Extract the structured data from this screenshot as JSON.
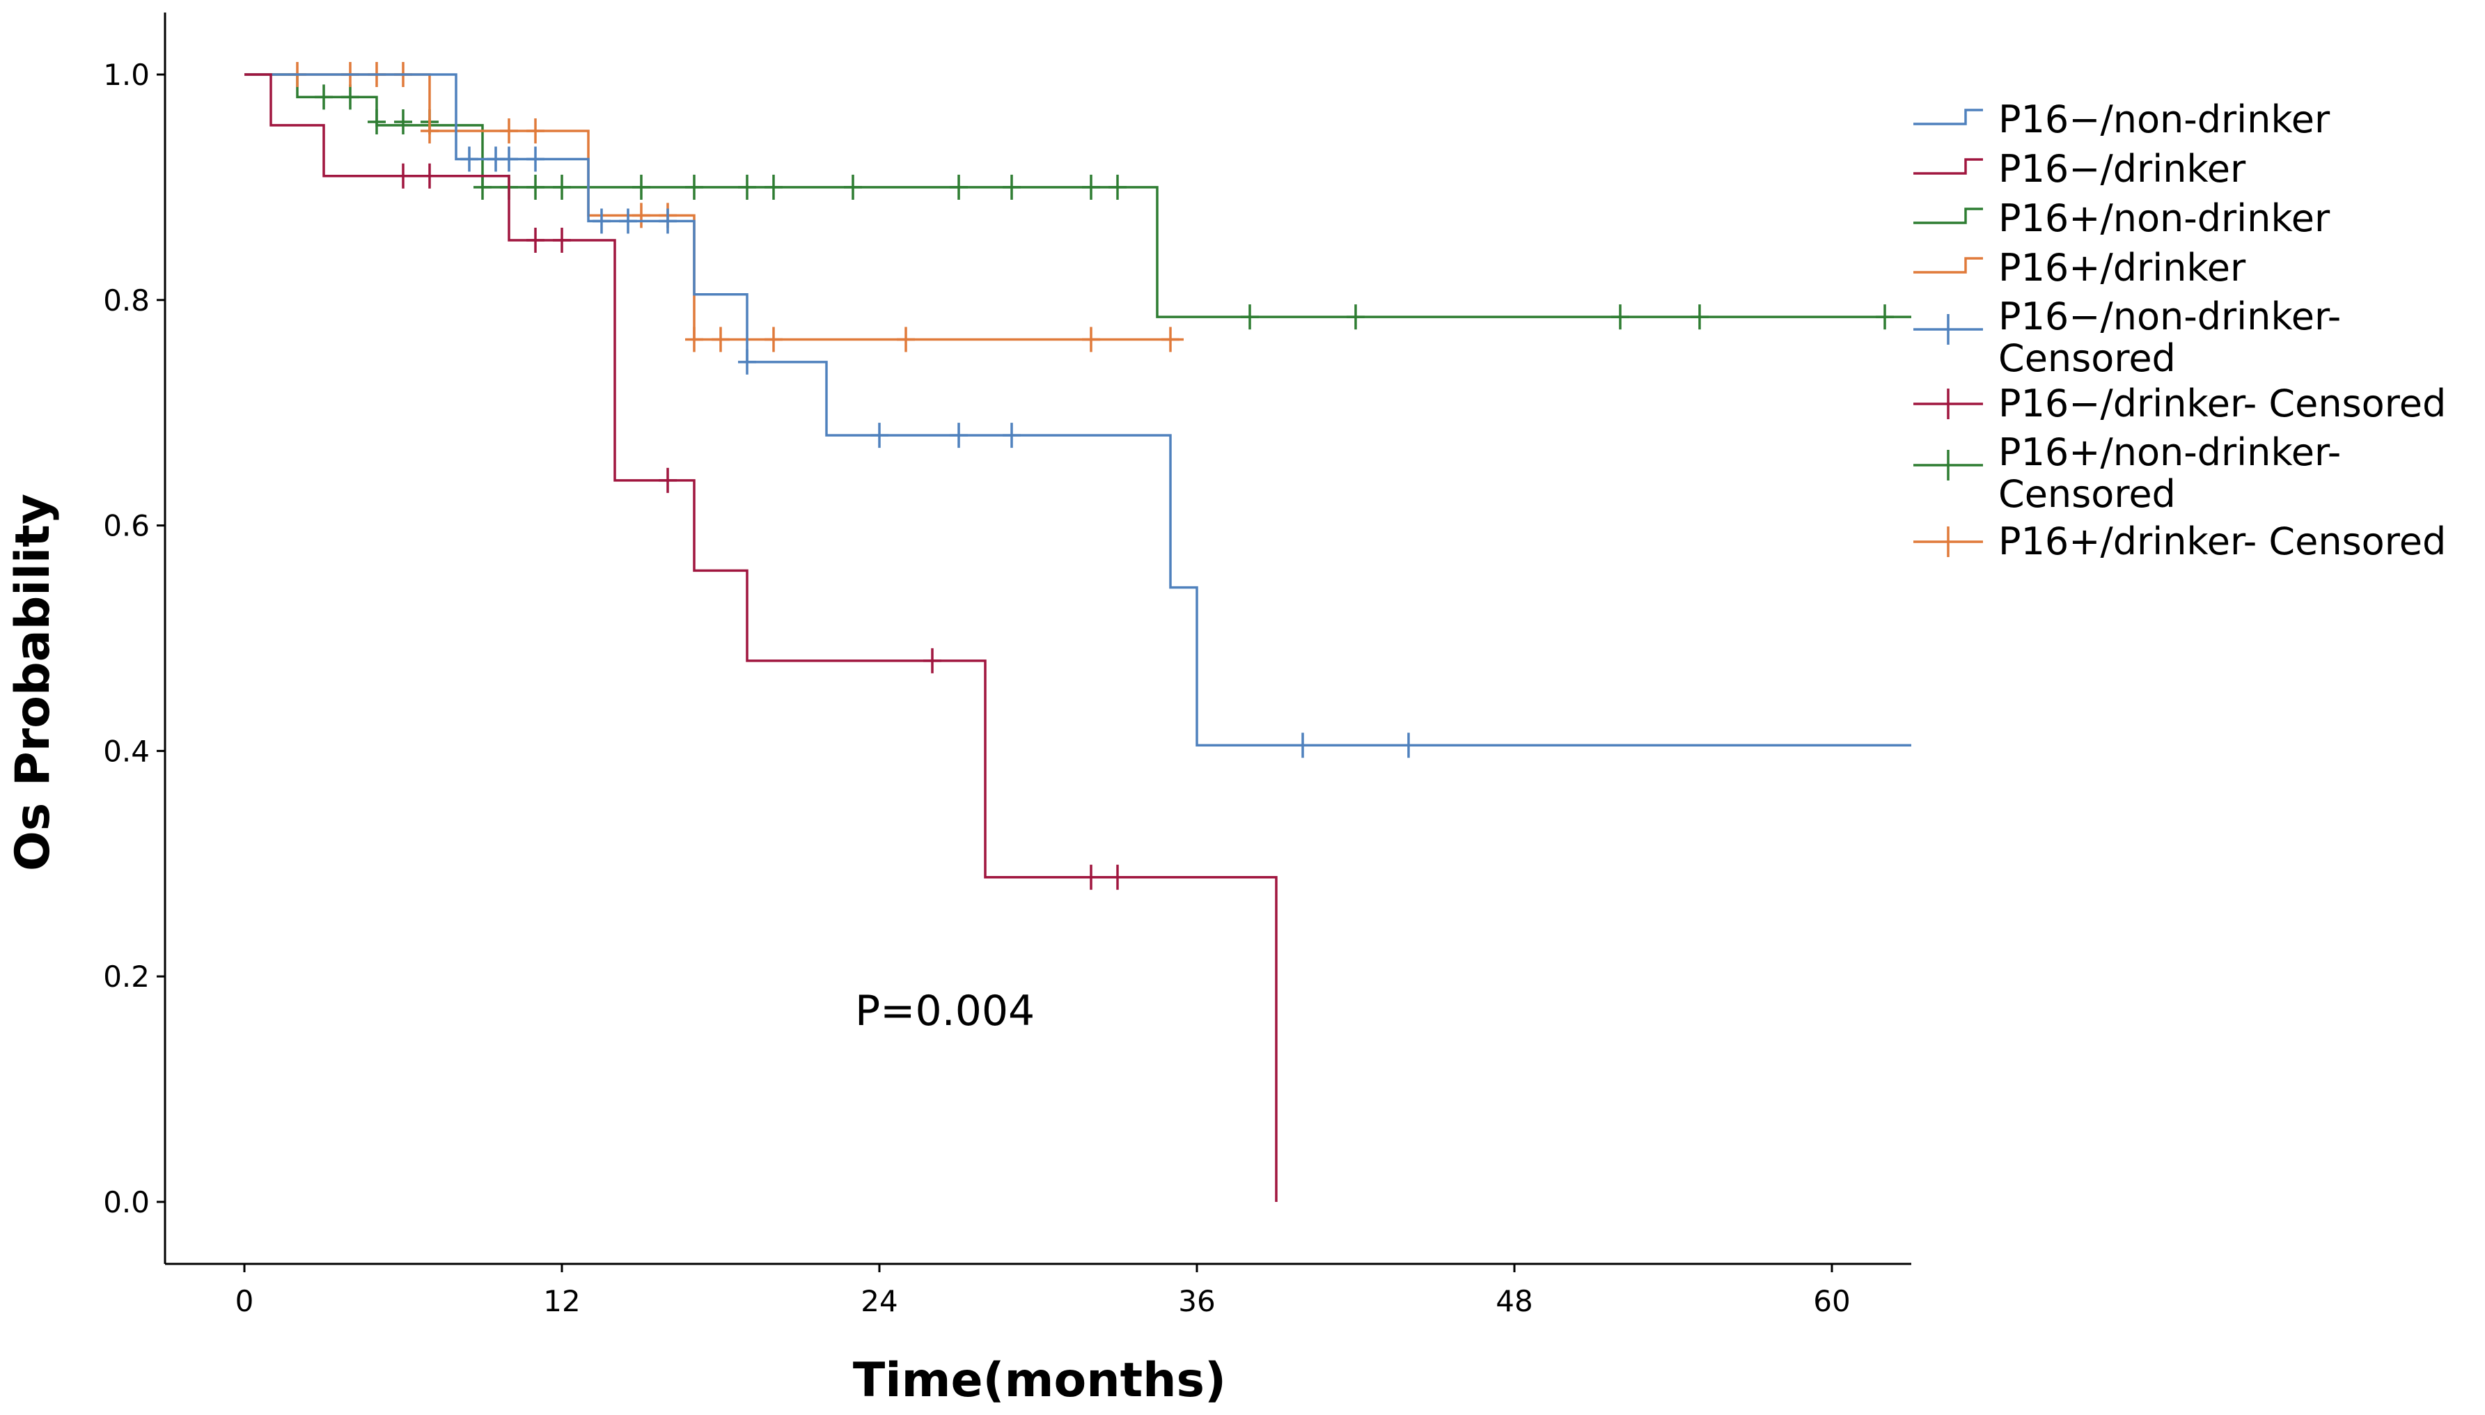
{
  "chart_data": {
    "type": "line",
    "title": "",
    "xlabel": "Time(months)",
    "ylabel": "Os Probability",
    "xlim": [
      -3,
      63
    ],
    "ylim": [
      -0.055,
      1.055
    ],
    "x_ticks": [
      0,
      12,
      24,
      36,
      48,
      60
    ],
    "x_tick_labels": [
      "0",
      "12",
      "24",
      "36",
      "48",
      "60"
    ],
    "y_ticks": [
      0.0,
      0.2,
      0.4,
      0.6,
      0.8,
      1.0
    ],
    "y_tick_labels": [
      "0.0",
      "0.2",
      "0.4",
      "0.6",
      "0.8",
      "1.0"
    ],
    "grid": false,
    "legend_position": "right",
    "annotation": "P=0.004",
    "series": [
      {
        "name": "P16−/non-drinker",
        "censored_name": "P16−/non-drinker-\nCensored",
        "color": "#4f81bd",
        "steps": [
          [
            0,
            1.0
          ],
          [
            8,
            0.925
          ],
          [
            13,
            0.87
          ],
          [
            17,
            0.805
          ],
          [
            19,
            0.745
          ],
          [
            22,
            0.68
          ],
          [
            35,
            0.545
          ],
          [
            36,
            0.405
          ],
          [
            63,
            0.405
          ]
        ],
        "censored": [
          [
            8.5,
            0.925
          ],
          [
            9.5,
            0.925
          ],
          [
            10,
            0.925
          ],
          [
            11,
            0.925
          ],
          [
            13.5,
            0.87
          ],
          [
            14.5,
            0.87
          ],
          [
            16,
            0.87
          ],
          [
            19,
            0.745
          ],
          [
            24,
            0.68
          ],
          [
            27,
            0.68
          ],
          [
            29,
            0.68
          ],
          [
            40,
            0.405
          ],
          [
            44,
            0.405
          ]
        ]
      },
      {
        "name": "P16−/drinker",
        "censored_name": "P16−/drinker- Censored",
        "color": "#a0163f",
        "steps": [
          [
            0,
            1.0
          ],
          [
            1,
            0.955
          ],
          [
            3,
            0.91
          ],
          [
            10,
            0.853
          ],
          [
            14,
            0.64
          ],
          [
            17,
            0.56
          ],
          [
            19,
            0.48
          ],
          [
            28,
            0.288
          ],
          [
            39,
            0.288
          ],
          [
            39,
            0.0
          ]
        ],
        "censored": [
          [
            6,
            0.91
          ],
          [
            7,
            0.91
          ],
          [
            11,
            0.853
          ],
          [
            12,
            0.853
          ],
          [
            16,
            0.64
          ],
          [
            26,
            0.48
          ],
          [
            32,
            0.288
          ],
          [
            33,
            0.288
          ]
        ]
      },
      {
        "name": "P16+/non-drinker",
        "censored_name": "P16+/non-drinker-\nCensored",
        "color": "#2e7d32",
        "steps": [
          [
            0,
            1.0
          ],
          [
            2,
            0.98
          ],
          [
            5,
            0.955
          ],
          [
            9,
            0.9
          ],
          [
            34,
            0.9
          ],
          [
            34.5,
            0.785
          ],
          [
            63,
            0.785
          ]
        ],
        "censored": [
          [
            3,
            0.98
          ],
          [
            4,
            0.98
          ],
          [
            5,
            0.958
          ],
          [
            6,
            0.958
          ],
          [
            7,
            0.958
          ],
          [
            9,
            0.9
          ],
          [
            10,
            0.9
          ],
          [
            11,
            0.9
          ],
          [
            12,
            0.9
          ],
          [
            15,
            0.9
          ],
          [
            17,
            0.9
          ],
          [
            19,
            0.9
          ],
          [
            20,
            0.9
          ],
          [
            23,
            0.9
          ],
          [
            27,
            0.9
          ],
          [
            29,
            0.9
          ],
          [
            32,
            0.9
          ],
          [
            33,
            0.9
          ],
          [
            38,
            0.785
          ],
          [
            42,
            0.785
          ],
          [
            52,
            0.785
          ],
          [
            55,
            0.785
          ],
          [
            62,
            0.785
          ]
        ]
      },
      {
        "name": "P16+/drinker",
        "censored_name": "P16+/drinker- Censored",
        "color": "#e07a3a",
        "steps": [
          [
            0,
            1.0
          ],
          [
            7,
            0.95
          ],
          [
            13,
            0.875
          ],
          [
            17,
            0.765
          ],
          [
            35.5,
            0.765
          ]
        ],
        "censored": [
          [
            2,
            1.0
          ],
          [
            4,
            1.0
          ],
          [
            5,
            1.0
          ],
          [
            6,
            1.0
          ],
          [
            7,
            0.95
          ],
          [
            10,
            0.95
          ],
          [
            11,
            0.95
          ],
          [
            15,
            0.875
          ],
          [
            16,
            0.875
          ],
          [
            17,
            0.765
          ],
          [
            18,
            0.765
          ],
          [
            20,
            0.765
          ],
          [
            25,
            0.765
          ],
          [
            32,
            0.765
          ],
          [
            35,
            0.765
          ]
        ]
      }
    ]
  }
}
